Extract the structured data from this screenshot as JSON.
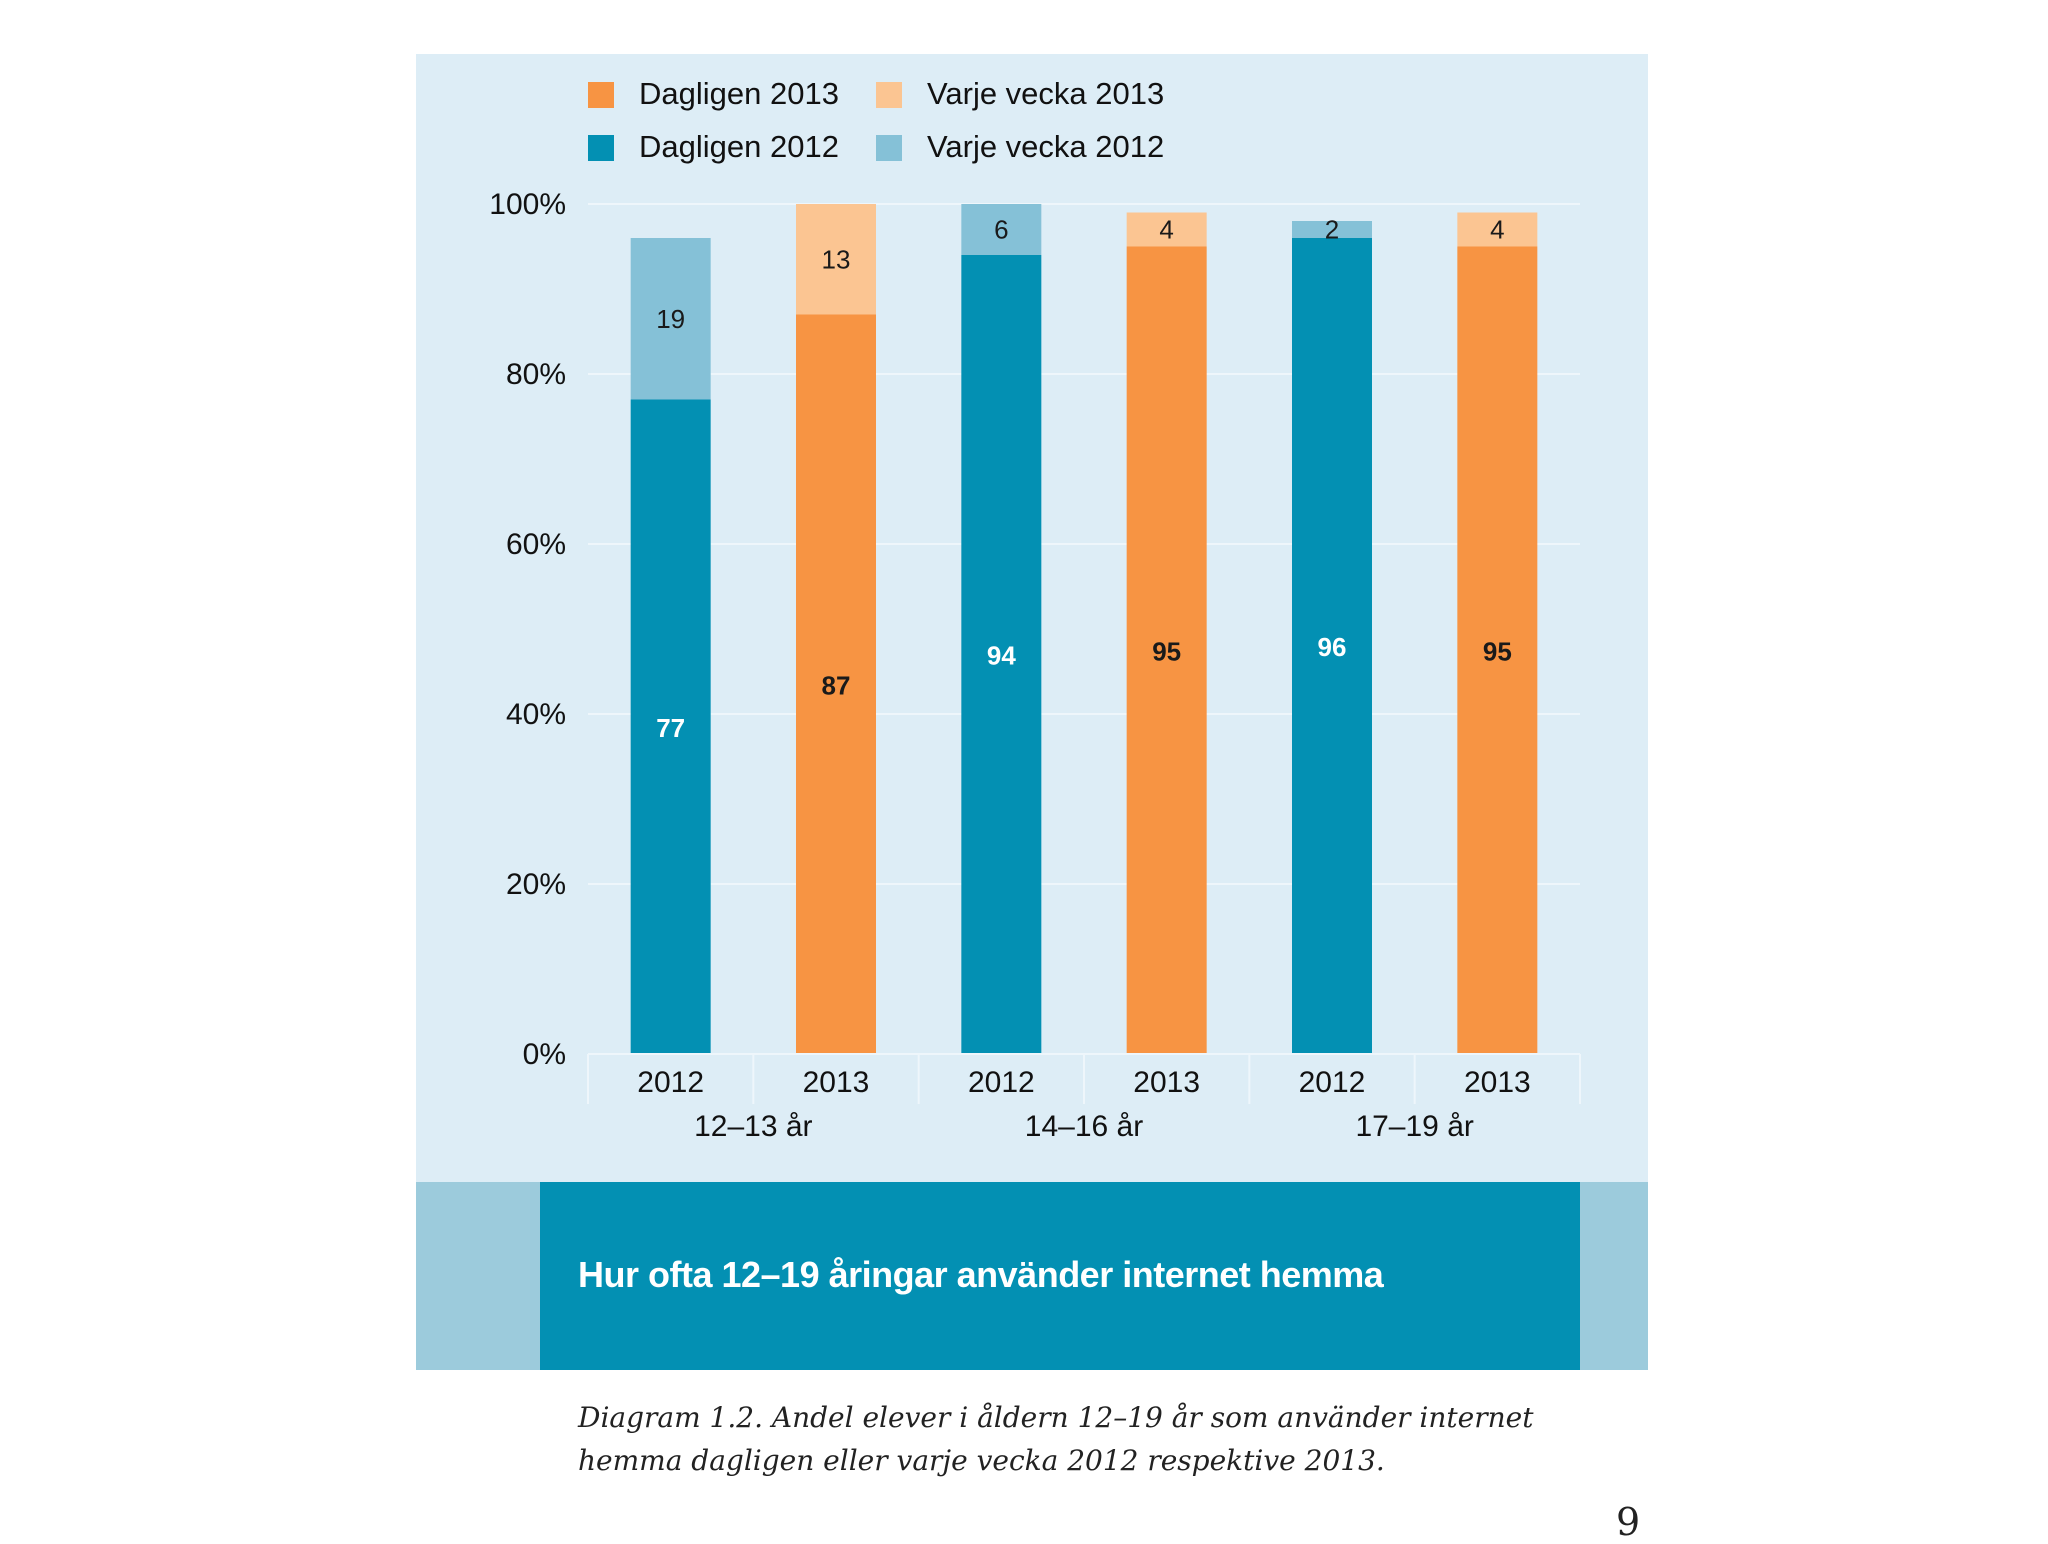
{
  "chart_data": {
    "type": "bar",
    "stacked": true,
    "title": "Hur ofta 12–19 åringar använder internet hemma",
    "ylim": [
      0,
      100
    ],
    "yticks": [
      "0%",
      "20%",
      "40%",
      "60%",
      "80%",
      "100%"
    ],
    "groups": [
      "12–13 år",
      "14–16 år",
      "17–19 år"
    ],
    "categories": [
      "2012",
      "2013",
      "2012",
      "2013",
      "2012",
      "2013"
    ],
    "bars": [
      {
        "group": "12–13 år",
        "year": "2012",
        "daily": 77,
        "weekly": 19
      },
      {
        "group": "12–13 år",
        "year": "2013",
        "daily": 87,
        "weekly": 13
      },
      {
        "group": "14–16 år",
        "year": "2012",
        "daily": 94,
        "weekly": 6
      },
      {
        "group": "14–16 år",
        "year": "2013",
        "daily": 95,
        "weekly": 4
      },
      {
        "group": "17–19 år",
        "year": "2012",
        "daily": 96,
        "weekly": 2
      },
      {
        "group": "17–19 år",
        "year": "2013",
        "daily": 95,
        "weekly": 4
      }
    ],
    "legend": [
      {
        "label": "Dagligen 2013",
        "color": "#f79443"
      },
      {
        "label": "Varje vecka 2013",
        "color": "#fbc592"
      },
      {
        "label": "Dagligen 2012",
        "color": "#0390b3"
      },
      {
        "label": "Varje vecka 2012",
        "color": "#85c1d7"
      }
    ],
    "colors": {
      "daily_2012": "#0390b3",
      "weekly_2012": "#85c1d7",
      "daily_2013": "#f79443",
      "weekly_2013": "#fbc592",
      "panel_bg": "#ddedf6"
    }
  },
  "caption": "Diagram 1.2. Andel elever i åldern 12–19 år som använder internet hemma dagligen eller varje vecka 2012 respektive 2013.",
  "page_number": "9"
}
